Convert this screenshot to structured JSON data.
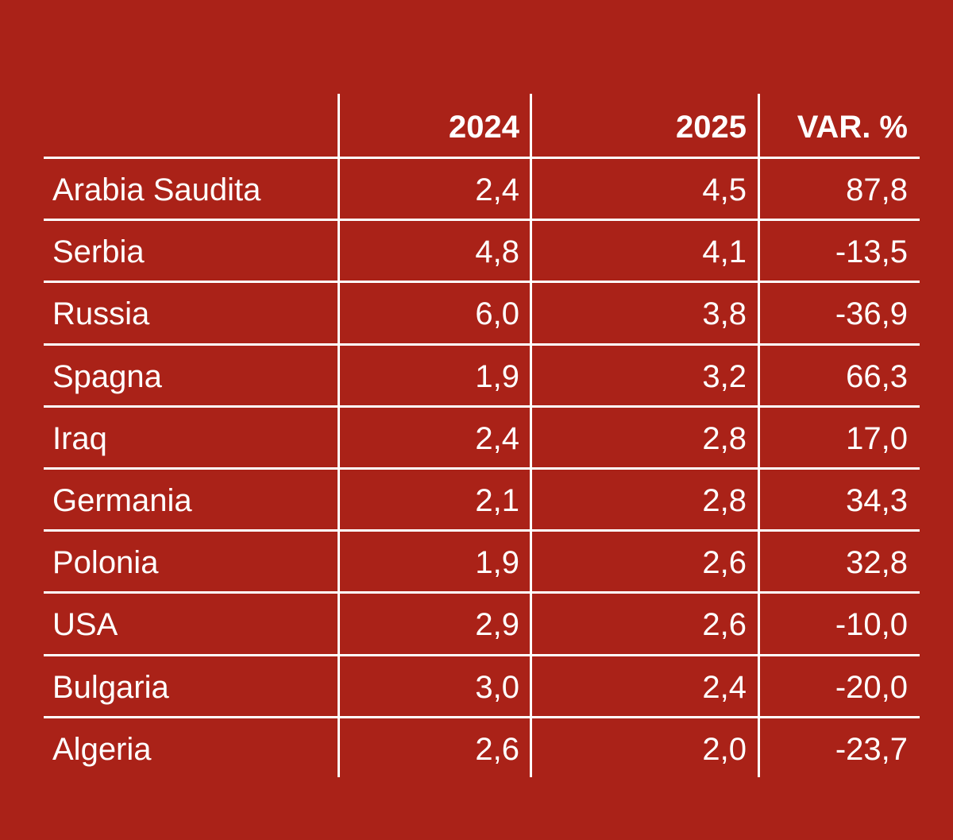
{
  "chart_data": {
    "type": "table",
    "columns": [
      "",
      "2024",
      "2025",
      "VAR. %"
    ],
    "rows": [
      {
        "country": "Arabia Saudita",
        "y2024": "2,4",
        "y2025": "4,5",
        "var": "87,8"
      },
      {
        "country": "Serbia",
        "y2024": "4,8",
        "y2025": "4,1",
        "var": "-13,5"
      },
      {
        "country": "Russia",
        "y2024": "6,0",
        "y2025": "3,8",
        "var": "-36,9"
      },
      {
        "country": "Spagna",
        "y2024": "1,9",
        "y2025": "3,2",
        "var": "66,3"
      },
      {
        "country": "Iraq",
        "y2024": "2,4",
        "y2025": "2,8",
        "var": "17,0"
      },
      {
        "country": "Germania",
        "y2024": "2,1",
        "y2025": "2,8",
        "var": "34,3"
      },
      {
        "country": "Polonia",
        "y2024": "1,9",
        "y2025": "2,6",
        "var": "32,8"
      },
      {
        "country": "USA",
        "y2024": "2,9",
        "y2025": "2,6",
        "var": "-10,0"
      },
      {
        "country": "Bulgaria",
        "y2024": "3,0",
        "y2025": "2,4",
        "var": "-20,0"
      },
      {
        "country": "Algeria",
        "y2024": "2,6",
        "y2025": "2,0",
        "var": "-23,7"
      }
    ]
  },
  "colors": {
    "background": "#AA2218",
    "text": "#FFFFFF",
    "rules": "#FFFFFF"
  }
}
